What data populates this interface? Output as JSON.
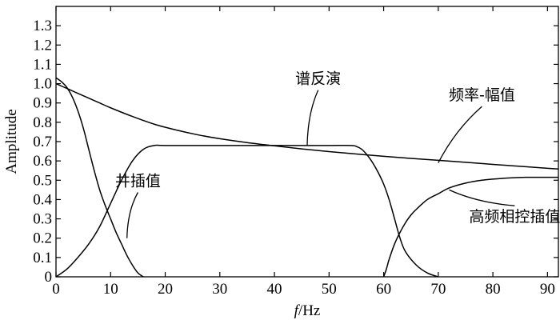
{
  "chart_data": {
    "type": "line",
    "title": "",
    "xlabel_italic": "f",
    "xlabel_rest": "/Hz",
    "ylabel": "Amplitude",
    "xlim": [
      0,
      92
    ],
    "ylim": [
      0,
      1.4
    ],
    "xticks": [
      0,
      10,
      20,
      30,
      40,
      50,
      60,
      70,
      80,
      90
    ],
    "yticks": [
      0,
      0.1,
      0.2,
      0.3,
      0.4,
      0.5,
      0.6,
      0.7,
      0.8,
      0.9,
      1.0,
      1.1,
      1.2,
      1.3
    ],
    "ytick_labels": [
      "0",
      "0.1",
      "0.2",
      "0.3",
      "0.4",
      "0.5",
      "0.6",
      "0.7",
      "0.8",
      "0.9",
      "1.0",
      "1.1",
      "1.2",
      "1.3"
    ],
    "grid": false,
    "series": [
      {
        "name": "频率-幅值",
        "x": [
          0,
          2,
          4,
          6,
          8,
          10,
          14,
          18,
          22,
          26,
          30,
          35,
          40,
          45,
          50,
          55,
          60,
          65,
          70,
          75,
          80,
          85,
          90,
          92
        ],
        "y": [
          1.0,
          0.975,
          0.95,
          0.925,
          0.9,
          0.875,
          0.83,
          0.79,
          0.76,
          0.735,
          0.715,
          0.695,
          0.678,
          0.662,
          0.648,
          0.636,
          0.624,
          0.613,
          0.603,
          0.593,
          0.582,
          0.572,
          0.562,
          0.558
        ]
      },
      {
        "name": "谱反演",
        "x": [
          0,
          2,
          4,
          6,
          8,
          10,
          12,
          14,
          16,
          18,
          20,
          30,
          40,
          50,
          54,
          55,
          56,
          57,
          58,
          59,
          60,
          61,
          62,
          63,
          64,
          66,
          68,
          70
        ],
        "y": [
          0,
          0.04,
          0.1,
          0.17,
          0.26,
          0.38,
          0.5,
          0.6,
          0.66,
          0.68,
          0.68,
          0.68,
          0.68,
          0.68,
          0.68,
          0.675,
          0.66,
          0.63,
          0.59,
          0.54,
          0.48,
          0.4,
          0.3,
          0.2,
          0.13,
          0.06,
          0.02,
          0
        ]
      },
      {
        "name": "井插值",
        "x": [
          0,
          1,
          2,
          3,
          4,
          5,
          6,
          7,
          8,
          9,
          10,
          11,
          12,
          13,
          14,
          15,
          16
        ],
        "y": [
          1.03,
          1.01,
          0.98,
          0.93,
          0.86,
          0.77,
          0.66,
          0.55,
          0.45,
          0.37,
          0.3,
          0.23,
          0.17,
          0.11,
          0.06,
          0.02,
          0
        ]
      },
      {
        "name": "高频相控插值",
        "x": [
          60,
          60.5,
          61,
          62,
          63,
          64,
          65,
          66,
          68,
          70,
          72,
          75,
          78,
          82,
          86,
          90,
          92
        ],
        "y": [
          0,
          0.04,
          0.09,
          0.17,
          0.23,
          0.28,
          0.32,
          0.35,
          0.4,
          0.43,
          0.46,
          0.485,
          0.5,
          0.51,
          0.515,
          0.515,
          0.515
        ]
      }
    ],
    "annotations": [
      {
        "text": "谱反演",
        "series": 1,
        "point": [
          46,
          0.68
        ],
        "label": [
          48,
          1.0
        ]
      },
      {
        "text": "频率-幅值",
        "series": 0,
        "point": [
          70,
          0.59
        ],
        "label": [
          78,
          0.915
        ]
      },
      {
        "text": "井插值",
        "series": 2,
        "point": [
          13,
          0.2
        ],
        "label": [
          15,
          0.47
        ]
      },
      {
        "text": "高频相控插值",
        "series": 3,
        "point": [
          72,
          0.45
        ],
        "label": [
          84,
          0.285
        ]
      }
    ]
  }
}
